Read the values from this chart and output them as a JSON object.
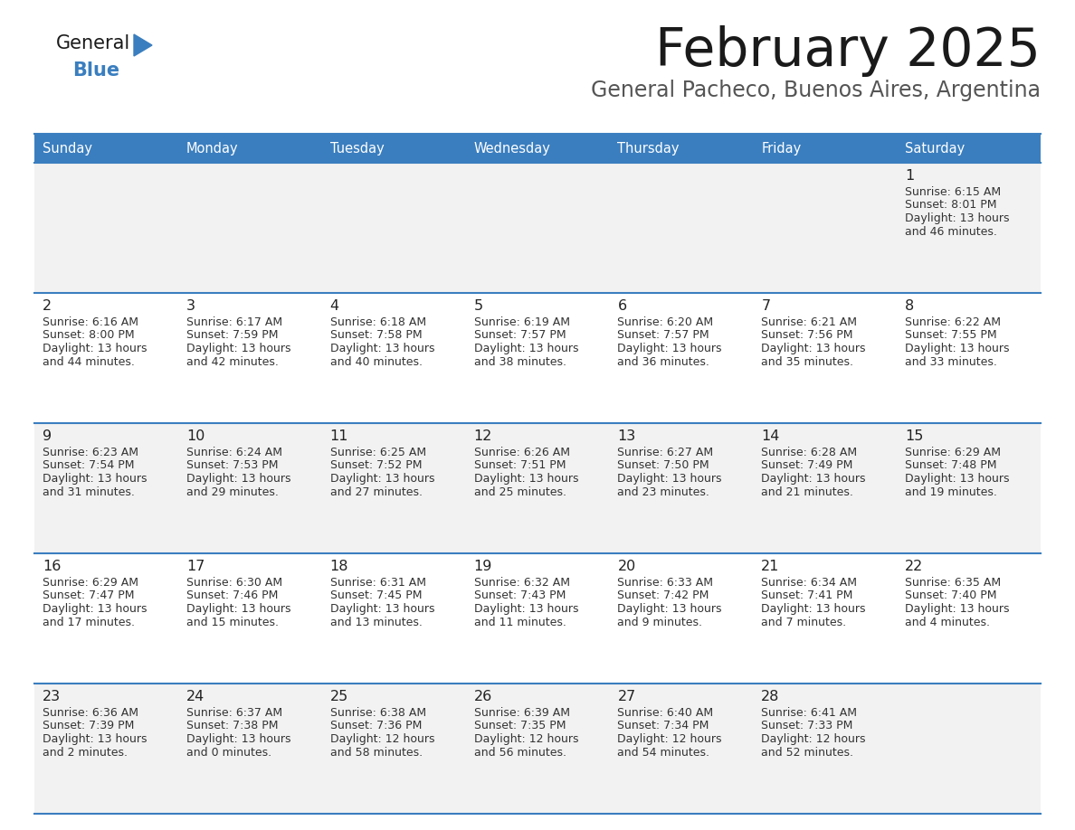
{
  "title": "February 2025",
  "subtitle": "General Pacheco, Buenos Aires, Argentina",
  "header_bg": "#3a7ebf",
  "header_text": "#ffffff",
  "row0_bg": "#f2f2f2",
  "row1_bg": "#ffffff",
  "border_color": "#3a7ebf",
  "text_color": "#333333",
  "day_num_color": "#222222",
  "logo_general_color": "#1a1a1a",
  "logo_blue_color": "#3a7ebf",
  "title_color": "#1a1a1a",
  "subtitle_color": "#555555",
  "days_of_week": [
    "Sunday",
    "Monday",
    "Tuesday",
    "Wednesday",
    "Thursday",
    "Friday",
    "Saturday"
  ],
  "calendar_data": [
    [
      {
        "day": "",
        "sunrise": "",
        "sunset": "",
        "daylight_h": "",
        "daylight_m": ""
      },
      {
        "day": "",
        "sunrise": "",
        "sunset": "",
        "daylight_h": "",
        "daylight_m": ""
      },
      {
        "day": "",
        "sunrise": "",
        "sunset": "",
        "daylight_h": "",
        "daylight_m": ""
      },
      {
        "day": "",
        "sunrise": "",
        "sunset": "",
        "daylight_h": "",
        "daylight_m": ""
      },
      {
        "day": "",
        "sunrise": "",
        "sunset": "",
        "daylight_h": "",
        "daylight_m": ""
      },
      {
        "day": "",
        "sunrise": "",
        "sunset": "",
        "daylight_h": "",
        "daylight_m": ""
      },
      {
        "day": "1",
        "sunrise": "6:15 AM",
        "sunset": "8:01 PM",
        "daylight_h": "13 hours",
        "daylight_m": "and 46 minutes."
      }
    ],
    [
      {
        "day": "2",
        "sunrise": "6:16 AM",
        "sunset": "8:00 PM",
        "daylight_h": "13 hours",
        "daylight_m": "and 44 minutes."
      },
      {
        "day": "3",
        "sunrise": "6:17 AM",
        "sunset": "7:59 PM",
        "daylight_h": "13 hours",
        "daylight_m": "and 42 minutes."
      },
      {
        "day": "4",
        "sunrise": "6:18 AM",
        "sunset": "7:58 PM",
        "daylight_h": "13 hours",
        "daylight_m": "and 40 minutes."
      },
      {
        "day": "5",
        "sunrise": "6:19 AM",
        "sunset": "7:57 PM",
        "daylight_h": "13 hours",
        "daylight_m": "and 38 minutes."
      },
      {
        "day": "6",
        "sunrise": "6:20 AM",
        "sunset": "7:57 PM",
        "daylight_h": "13 hours",
        "daylight_m": "and 36 minutes."
      },
      {
        "day": "7",
        "sunrise": "6:21 AM",
        "sunset": "7:56 PM",
        "daylight_h": "13 hours",
        "daylight_m": "and 35 minutes."
      },
      {
        "day": "8",
        "sunrise": "6:22 AM",
        "sunset": "7:55 PM",
        "daylight_h": "13 hours",
        "daylight_m": "and 33 minutes."
      }
    ],
    [
      {
        "day": "9",
        "sunrise": "6:23 AM",
        "sunset": "7:54 PM",
        "daylight_h": "13 hours",
        "daylight_m": "and 31 minutes."
      },
      {
        "day": "10",
        "sunrise": "6:24 AM",
        "sunset": "7:53 PM",
        "daylight_h": "13 hours",
        "daylight_m": "and 29 minutes."
      },
      {
        "day": "11",
        "sunrise": "6:25 AM",
        "sunset": "7:52 PM",
        "daylight_h": "13 hours",
        "daylight_m": "and 27 minutes."
      },
      {
        "day": "12",
        "sunrise": "6:26 AM",
        "sunset": "7:51 PM",
        "daylight_h": "13 hours",
        "daylight_m": "and 25 minutes."
      },
      {
        "day": "13",
        "sunrise": "6:27 AM",
        "sunset": "7:50 PM",
        "daylight_h": "13 hours",
        "daylight_m": "and 23 minutes."
      },
      {
        "day": "14",
        "sunrise": "6:28 AM",
        "sunset": "7:49 PM",
        "daylight_h": "13 hours",
        "daylight_m": "and 21 minutes."
      },
      {
        "day": "15",
        "sunrise": "6:29 AM",
        "sunset": "7:48 PM",
        "daylight_h": "13 hours",
        "daylight_m": "and 19 minutes."
      }
    ],
    [
      {
        "day": "16",
        "sunrise": "6:29 AM",
        "sunset": "7:47 PM",
        "daylight_h": "13 hours",
        "daylight_m": "and 17 minutes."
      },
      {
        "day": "17",
        "sunrise": "6:30 AM",
        "sunset": "7:46 PM",
        "daylight_h": "13 hours",
        "daylight_m": "and 15 minutes."
      },
      {
        "day": "18",
        "sunrise": "6:31 AM",
        "sunset": "7:45 PM",
        "daylight_h": "13 hours",
        "daylight_m": "and 13 minutes."
      },
      {
        "day": "19",
        "sunrise": "6:32 AM",
        "sunset": "7:43 PM",
        "daylight_h": "13 hours",
        "daylight_m": "and 11 minutes."
      },
      {
        "day": "20",
        "sunrise": "6:33 AM",
        "sunset": "7:42 PM",
        "daylight_h": "13 hours",
        "daylight_m": "and 9 minutes."
      },
      {
        "day": "21",
        "sunrise": "6:34 AM",
        "sunset": "7:41 PM",
        "daylight_h": "13 hours",
        "daylight_m": "and 7 minutes."
      },
      {
        "day": "22",
        "sunrise": "6:35 AM",
        "sunset": "7:40 PM",
        "daylight_h": "13 hours",
        "daylight_m": "and 4 minutes."
      }
    ],
    [
      {
        "day": "23",
        "sunrise": "6:36 AM",
        "sunset": "7:39 PM",
        "daylight_h": "13 hours",
        "daylight_m": "and 2 minutes."
      },
      {
        "day": "24",
        "sunrise": "6:37 AM",
        "sunset": "7:38 PM",
        "daylight_h": "13 hours",
        "daylight_m": "and 0 minutes."
      },
      {
        "day": "25",
        "sunrise": "6:38 AM",
        "sunset": "7:36 PM",
        "daylight_h": "12 hours",
        "daylight_m": "and 58 minutes."
      },
      {
        "day": "26",
        "sunrise": "6:39 AM",
        "sunset": "7:35 PM",
        "daylight_h": "12 hours",
        "daylight_m": "and 56 minutes."
      },
      {
        "day": "27",
        "sunrise": "6:40 AM",
        "sunset": "7:34 PM",
        "daylight_h": "12 hours",
        "daylight_m": "and 54 minutes."
      },
      {
        "day": "28",
        "sunrise": "6:41 AM",
        "sunset": "7:33 PM",
        "daylight_h": "12 hours",
        "daylight_m": "and 52 minutes."
      },
      {
        "day": "",
        "sunrise": "",
        "sunset": "",
        "daylight_h": "",
        "daylight_m": ""
      }
    ]
  ]
}
